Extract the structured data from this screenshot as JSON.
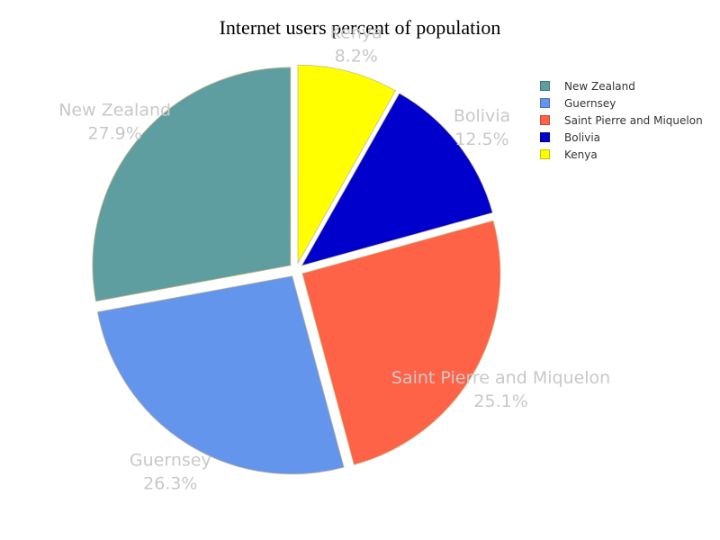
{
  "chart_data": {
    "type": "pie",
    "title": "Internet users percent of population",
    "slices": [
      {
        "label": "New Zealand",
        "value": 27.9,
        "value_text": "27.9%",
        "color": "#5f9ea0"
      },
      {
        "label": "Guernsey",
        "value": 26.3,
        "value_text": "26.3%",
        "color": "#6495ed"
      },
      {
        "label": "Saint Pierre and Miquelon",
        "value": 25.1,
        "value_text": "25.1%",
        "color": "#ff6347"
      },
      {
        "label": "Bolivia",
        "value": 12.5,
        "value_text": "12.5%",
        "color": "#0000cd"
      },
      {
        "label": "Kenya",
        "value": 8.2,
        "value_text": "8.2%",
        "color": "#ffff00"
      }
    ],
    "legend_position": "top-right",
    "slice_border_color": "#c8b98a",
    "label_color": "#c8c8c8"
  }
}
